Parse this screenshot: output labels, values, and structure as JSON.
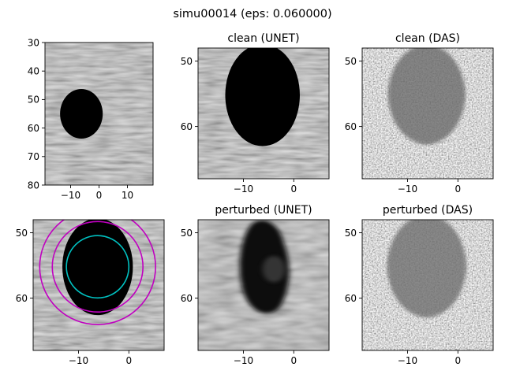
{
  "figure": {
    "suptitle": "simu00014 (eps: 0.060000)"
  },
  "colors": {
    "contour_outer": "#c000c0",
    "contour_inner": "#00c0c0",
    "lesion": "#000000",
    "speckle_base": "#a6a6a6"
  },
  "chart_data": [
    {
      "id": "ax1",
      "type": "heatmap",
      "title": "",
      "xlim": [
        -19,
        19
      ],
      "ylim": [
        80,
        30
      ],
      "y_inverted": true,
      "xticks": [
        -10,
        0,
        10
      ],
      "xtick_labels": [
        "−10",
        "0",
        "10"
      ],
      "yticks": [
        30,
        40,
        50,
        60,
        70,
        80
      ],
      "ytick_labels": [
        "30",
        "40",
        "50",
        "60",
        "70",
        "80"
      ],
      "image": {
        "style": "bmode_smooth",
        "lesion": {
          "cx": -6.2,
          "cy": 55,
          "rx": 7.5,
          "ry": 8.7,
          "shade": "#000000"
        }
      }
    },
    {
      "id": "ax2",
      "type": "heatmap",
      "title": "clean (UNET)",
      "xlim": [
        -19,
        7
      ],
      "ylim": [
        68,
        48
      ],
      "y_inverted": true,
      "xticks": [
        -10,
        0
      ],
      "xtick_labels": [
        "−10",
        "0"
      ],
      "yticks": [
        50,
        60
      ],
      "ytick_labels": [
        "50",
        "60"
      ],
      "image": {
        "style": "bmode_smooth",
        "lesion": {
          "cx": -6.2,
          "cy": 55.2,
          "rx": 7.4,
          "ry": 7.8,
          "shade": "#000000"
        }
      }
    },
    {
      "id": "ax3",
      "type": "heatmap",
      "title": "clean (DAS)",
      "xlim": [
        -19,
        7
      ],
      "ylim": [
        68,
        48
      ],
      "y_inverted": true,
      "xticks": [
        -10,
        0
      ],
      "xtick_labels": [
        "−10",
        "0"
      ],
      "yticks": [
        50,
        60
      ],
      "ytick_labels": [
        "50",
        "60"
      ],
      "image": {
        "style": "bmode_noisy",
        "lesion": {
          "cx": -6.2,
          "cy": 55.1,
          "rx": 7.6,
          "ry": 7.6,
          "shade": "#6a6a6a"
        }
      }
    },
    {
      "id": "ax4",
      "type": "heatmap",
      "title": "",
      "xlim": [
        -19,
        7
      ],
      "ylim": [
        68,
        48
      ],
      "y_inverted": true,
      "xticks": [
        -10,
        0
      ],
      "xtick_labels": [
        "−10",
        "0"
      ],
      "yticks": [
        50,
        60
      ],
      "ytick_labels": [
        "50",
        "60"
      ],
      "image": {
        "style": "bmode_smooth",
        "lesion": {
          "cx": -6.2,
          "cy": 55.2,
          "rx": 7.0,
          "ry": 7.4,
          "shade": "#000000"
        }
      },
      "contours": [
        {
          "label": "outer ring 2",
          "cx": -6.2,
          "cy": 55.2,
          "r": 11.5,
          "color": "#c000c0"
        },
        {
          "label": "outer ring 1",
          "cx": -6.2,
          "cy": 55.2,
          "r": 9.0,
          "color": "#c000c0"
        },
        {
          "label": "inner boundary",
          "cx": -6.2,
          "cy": 55.2,
          "r": 6.2,
          "color": "#00c0c0"
        }
      ]
    },
    {
      "id": "ax5",
      "type": "heatmap",
      "title": "perturbed (UNET)",
      "xlim": [
        -19,
        7
      ],
      "ylim": [
        68,
        48
      ],
      "y_inverted": true,
      "xticks": [
        -10,
        0
      ],
      "xtick_labels": [
        "−10",
        "0"
      ],
      "yticks": [
        50,
        60
      ],
      "ytick_labels": [
        "50",
        "60"
      ],
      "image": {
        "style": "bmode_blurred",
        "lesion": {
          "cx": -5.7,
          "cy": 55.2,
          "rx": 5.0,
          "ry": 7.2,
          "shade": "#0a0a0a",
          "irregular": true
        }
      }
    },
    {
      "id": "ax6",
      "type": "heatmap",
      "title": "perturbed (DAS)",
      "xlim": [
        -19,
        7
      ],
      "ylim": [
        68,
        48
      ],
      "y_inverted": true,
      "xticks": [
        -10,
        0
      ],
      "xtick_labels": [
        "−10",
        "0"
      ],
      "yticks": [
        50,
        60
      ],
      "ytick_labels": [
        "50",
        "60"
      ],
      "image": {
        "style": "bmode_noisy",
        "lesion": {
          "cx": -6.2,
          "cy": 55.1,
          "rx": 7.8,
          "ry": 7.8,
          "shade": "#6e6e6e"
        }
      }
    }
  ]
}
